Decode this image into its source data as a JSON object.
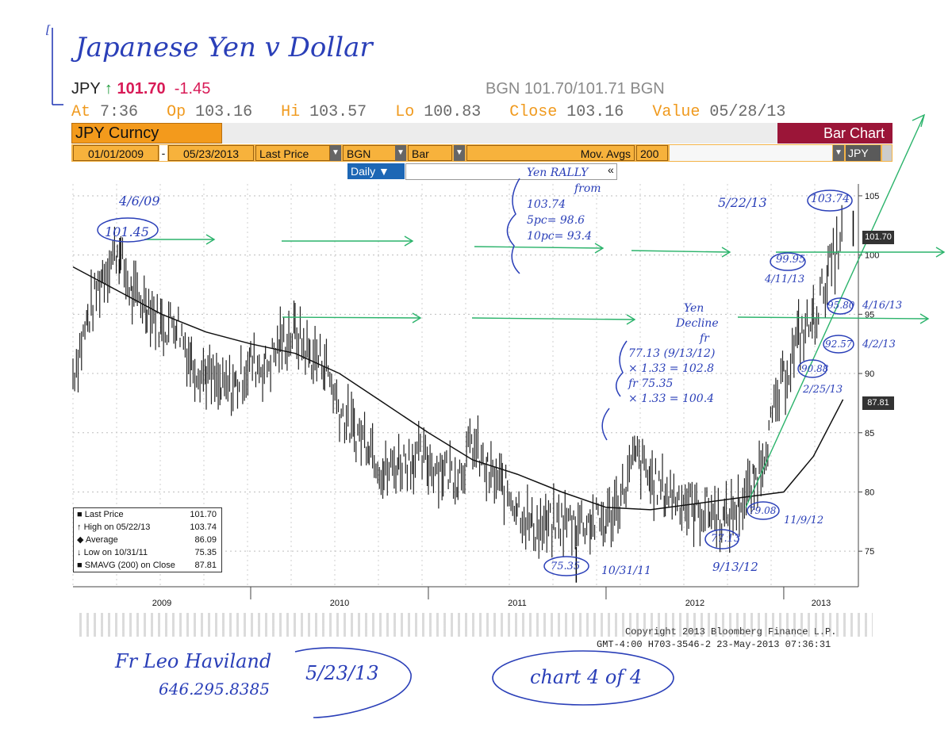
{
  "annotations": {
    "title": "Japanese Yen v Dollar",
    "peak_2009_date": "4/6/09",
    "peak_2009_value": "101.45",
    "rally_lines": [
      "Yen RALLY",
      "from",
      "103.74",
      "5pc= 98.6",
      "10pc= 93.4"
    ],
    "decline_lines": [
      "Yen",
      "Decline",
      "fr",
      "77.13 (9/13/12)",
      "× 1.33 = 102.8",
      "fr 75.35",
      "× 1.33 = 100.4"
    ],
    "peak_2013_date": "5/22/13",
    "peak_2013_value": "103.74",
    "p9995": "99.95",
    "d41113": "4/11/13",
    "p9580": "95.80",
    "d41613": "4/16/13",
    "p9257": "92.57",
    "d4213": "4/2/13",
    "p9088": "90.88",
    "d22513": "2/25/13",
    "p7908": "79.08",
    "d11912": "11/9/12",
    "p7713": "77.13",
    "d91312": "9/13/12",
    "p7535": "75.35",
    "d103111": "10/31/11",
    "signature_name": "Fr Leo Haviland",
    "signature_phone": "646.295.8385",
    "sig_date": "5/23/13",
    "chart_of": "chart 4 of 4"
  },
  "ticker": {
    "symbol": "JPY",
    "arrow": "↑",
    "last": "101.70",
    "change": "-1.45",
    "bid_ask": "BGN 101.70/101.71 BGN"
  },
  "quote": {
    "at_label": "At",
    "at_value": "7:36",
    "op_label": "Op",
    "op_value": "103.16",
    "hi_label": "Hi",
    "hi_value": "103.57",
    "lo_label": "Lo",
    "lo_value": "100.83",
    "close_label": "Close",
    "close_value": "103.16",
    "value_label": "Value",
    "value_value": "05/28/13"
  },
  "toolbar": {
    "security": "JPY Curncy",
    "chart_type_title": "Bar Chart",
    "start_date": "01/01/2009",
    "sep": "-",
    "end_date": "05/23/2013",
    "price_field": "Last Price",
    "source": "BGN",
    "style": "Bar",
    "mov_avgs_label": "Mov. Avgs",
    "mov_avgs_value": "200",
    "currency": "JPY",
    "period": "Daily ▼",
    "dropdown_icon": "▼",
    "collapse_icon": "«"
  },
  "legend": {
    "rows": [
      {
        "label": "Last Price",
        "value": "101.70"
      },
      {
        "label": "High on 05/22/13",
        "value": "103.74"
      },
      {
        "label": "Average",
        "value": "86.09"
      },
      {
        "label": "Low on 10/31/11",
        "value": "75.35"
      },
      {
        "label": "SMAVG (200) on Close",
        "value": "87.81"
      }
    ]
  },
  "footer": {
    "copyright": "Copyright 2013 Bloomberg Finance L.P.",
    "stamp": "GMT-4:00 H703-3546-2 23-May-2013 07:36:31"
  },
  "chart_data": {
    "type": "bar",
    "title": "",
    "xlabel": "",
    "ylabel": "",
    "ylim": [
      72,
      106
    ],
    "yticks": [
      75,
      80,
      85,
      90,
      95,
      100,
      105
    ],
    "year_labels": [
      "2009",
      "2010",
      "2011",
      "2012",
      "2013"
    ],
    "price_flag": "101.70",
    "sma_flag": "87.81",
    "series": [
      {
        "name": "Last Price",
        "x": [
          "01/2009",
          "02/2009",
          "03/2009",
          "04/2009",
          "05/2009",
          "06/2009",
          "07/2009",
          "08/2009",
          "09/2009",
          "10/2009",
          "11/2009",
          "12/2009",
          "01/2010",
          "02/2010",
          "03/2010",
          "04/2010",
          "05/2010",
          "06/2010",
          "07/2010",
          "08/2010",
          "09/2010",
          "10/2010",
          "11/2010",
          "12/2010",
          "01/2011",
          "02/2011",
          "03/2011",
          "04/2011",
          "05/2011",
          "06/2011",
          "07/2011",
          "08/2011",
          "09/2011",
          "10/2011",
          "11/2011",
          "12/2011",
          "01/2012",
          "02/2012",
          "03/2012",
          "04/2012",
          "05/2012",
          "06/2012",
          "07/2012",
          "08/2012",
          "09/2012",
          "10/2012",
          "11/2012",
          "12/2012",
          "01/2013",
          "02/2013",
          "03/2013",
          "04/2013",
          "05/2013"
        ],
        "y": [
          90.0,
          94.5,
          98.5,
          100.5,
          96.5,
          96.0,
          94.0,
          94.5,
          91.0,
          90.0,
          88.5,
          89.0,
          91.0,
          90.5,
          92.5,
          93.5,
          91.5,
          91.0,
          87.0,
          85.0,
          84.5,
          81.5,
          82.5,
          83.0,
          82.5,
          82.0,
          81.5,
          84.0,
          81.5,
          80.5,
          79.0,
          77.0,
          77.0,
          77.5,
          77.5,
          77.5,
          77.5,
          79.5,
          83.0,
          81.0,
          80.0,
          79.5,
          78.5,
          78.5,
          77.5,
          79.0,
          80.5,
          85.0,
          89.5,
          93.0,
          94.5,
          98.5,
          101.7
        ]
      },
      {
        "name": "SMAVG (200) on Close",
        "x": [
          "01/2009",
          "04/2009",
          "07/2009",
          "10/2009",
          "01/2010",
          "04/2010",
          "07/2010",
          "10/2010",
          "01/2011",
          "04/2011",
          "07/2011",
          "10/2011",
          "01/2012",
          "04/2012",
          "07/2012",
          "10/2012",
          "01/2013",
          "03/2013",
          "05/2013"
        ],
        "y": [
          99.0,
          97.0,
          95.0,
          93.5,
          92.5,
          91.7,
          90.0,
          87.5,
          85.0,
          82.7,
          81.5,
          80.0,
          78.7,
          78.5,
          79.0,
          79.5,
          80.0,
          83.0,
          87.8
        ]
      }
    ],
    "highlights": [
      {
        "x": "05/22/2013",
        "y": 103.74
      },
      {
        "x": "04/06/2009",
        "y": 101.45
      },
      {
        "x": "10/31/2011",
        "y": 75.35
      }
    ]
  }
}
